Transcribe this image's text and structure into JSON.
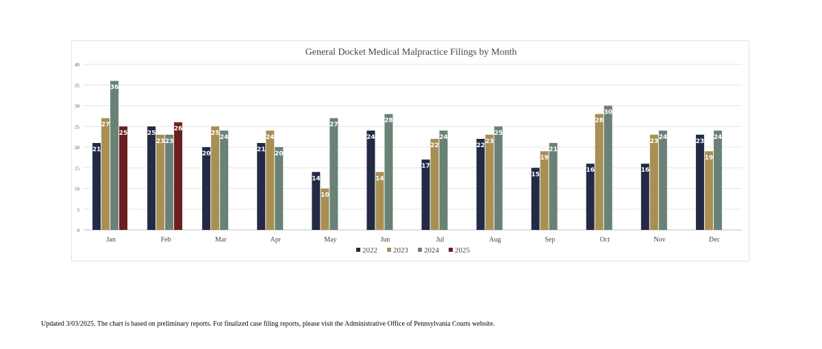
{
  "chart_data": {
    "type": "bar",
    "title": "General Docket Medical Malpractice Filings by Month",
    "xlabel": "",
    "ylabel": "",
    "ylim": [
      0,
      40
    ],
    "yticks": [
      0,
      5,
      10,
      15,
      20,
      25,
      30,
      35,
      40
    ],
    "grid": true,
    "legend_position": "bottom",
    "categories": [
      "Jan",
      "Feb",
      "Mar",
      "Apr",
      "May",
      "Jun",
      "Jul",
      "Aug",
      "Sep",
      "Oct",
      "Nov",
      "Dec"
    ],
    "series": [
      {
        "name": "2022",
        "color": "#222a45",
        "values": [
          21,
          25,
          20,
          21,
          14,
          24,
          17,
          22,
          15,
          16,
          16,
          23
        ]
      },
      {
        "name": "2023",
        "color": "#a88f54",
        "values": [
          27,
          23,
          25,
          24,
          10,
          14,
          22,
          23,
          19,
          28,
          23,
          19
        ]
      },
      {
        "name": "2024",
        "color": "#6a8276",
        "values": [
          36,
          23,
          24,
          20,
          27,
          28,
          24,
          25,
          21,
          30,
          24,
          24
        ]
      },
      {
        "name": "2025",
        "color": "#6b1f1f",
        "values": [
          25,
          26,
          null,
          null,
          null,
          null,
          null,
          null,
          null,
          null,
          null,
          null
        ]
      }
    ]
  },
  "footnote": "Updated 3/03/2025.  The chart is based on preliminary reports.  For finalized case filing reports, please visit the Administrative Office of Pennsylvania Courts website."
}
